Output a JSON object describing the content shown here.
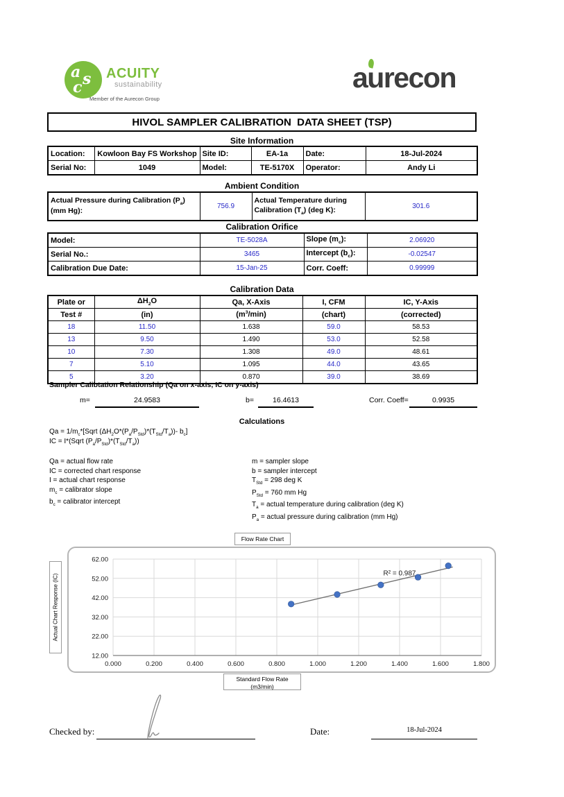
{
  "colors": {
    "input_blue": "#2728C8",
    "brand_green": "#7DBE3E",
    "point_blue": "#4472C4"
  },
  "header": {
    "acuity": {
      "monogram_a": "a",
      "monogram_s": "s",
      "monogram_c": "c",
      "name": "ACUITY",
      "tagline": "sustainability",
      "member_line": "Member of the Aurecon Group"
    },
    "aurecon_wordmark": "aurecon"
  },
  "title": "HIVOL SAMPLER CALIBRATION  DATA SHEET (TSP)",
  "site_info": {
    "heading": "Site Information",
    "location_label": "Location:",
    "location": "Kowloon Bay FS Workshop",
    "site_id_label": "Site ID:",
    "site_id": "EA-1a",
    "date_label": "Date:",
    "date": "18-Jul-2024",
    "serial_label": "Serial No:",
    "serial": "1049",
    "model_label": "Model:",
    "model": "TE-5170X",
    "operator_label": "Operator:",
    "operator": "Andy Li"
  },
  "ambient": {
    "heading": "Ambient Condition",
    "pressure_label": [
      {
        "t": "Actual Pressure during Calibration (P"
      },
      {
        "t": "a",
        "s": "sub"
      },
      {
        "t": ")"
      },
      {
        "br": true
      },
      {
        "t": "(mm Hg):"
      }
    ],
    "pressure": "756.9",
    "temp_label": [
      {
        "t": "Actual Temperature during"
      },
      {
        "br": true
      },
      {
        "t": "Calibration (T"
      },
      {
        "t": "a",
        "s": "sub"
      },
      {
        "t": ") (deg K):"
      }
    ],
    "temp": "301.6"
  },
  "orifice": {
    "heading": "Calibration Orifice",
    "left_labels": [
      "Model:",
      "Serial No.:",
      "Calibration Due Date:"
    ],
    "left_values": [
      "TE-5028A",
      "3465",
      "15-Jan-25"
    ],
    "right_labels_rich": [
      [
        {
          "t": "Slope (m"
        },
        {
          "t": "c",
          "s": "sub"
        },
        {
          "t": "):"
        }
      ],
      [
        {
          "t": "Intercept (b"
        },
        {
          "t": "c",
          "s": "sub"
        },
        {
          "t": "):"
        }
      ],
      [
        {
          "t": "Corr. Coeff:"
        }
      ]
    ],
    "right_values": [
      "2.06920",
      "-0.02547",
      "0.99999"
    ]
  },
  "calibration_data": {
    "heading": "Calibration Data",
    "headers": {
      "c1a": "Plate or",
      "c1b": "Test #",
      "c2a": [
        {
          "t": "ΔH"
        },
        {
          "t": "2",
          "s": "sub"
        },
        {
          "t": "O"
        }
      ],
      "c2b": "(in)",
      "c3a": "Qa, X-Axis",
      "c3b": [
        {
          "t": "(m"
        },
        {
          "t": "3",
          "s": "sup"
        },
        {
          "t": "/min)"
        }
      ],
      "c4a": "I, CFM",
      "c4b": "(chart)",
      "c5a": "IC, Y-Axis",
      "c5b": "(corrected)"
    },
    "rows": [
      {
        "test": "18",
        "dh2o": "11.50",
        "qa": "1.638",
        "i": "59.0",
        "ic": "58.53"
      },
      {
        "test": "13",
        "dh2o": "9.50",
        "qa": "1.490",
        "i": "53.0",
        "ic": "52.58"
      },
      {
        "test": "10",
        "dh2o": "7.30",
        "qa": "1.308",
        "i": "49.0",
        "ic": "48.61"
      },
      {
        "test": "7",
        "dh2o": "5.10",
        "qa": "1.095",
        "i": "44.0",
        "ic": "43.65"
      },
      {
        "test": "5",
        "dh2o": "3.20",
        "qa": "0.870",
        "i": "39.0",
        "ic": "38.69"
      }
    ]
  },
  "relationship": {
    "heading": "Sampler Calibtation Relationship (Qa on x-axis, IC on y-axis)",
    "m_label": "m=",
    "m": "24.9583",
    "b_label": "b=",
    "b": "16.4613",
    "corr_label": "Corr. Coeff=",
    "corr": "0.9935"
  },
  "calculations": {
    "heading": "Calculations",
    "formula_qa": [
      {
        "t": "Qa = 1/m"
      },
      {
        "t": "c",
        "s": "sub"
      },
      {
        "t": "*[Sqrt (ΔH"
      },
      {
        "t": "2",
        "s": "sub"
      },
      {
        "t": "O*(P"
      },
      {
        "t": "a",
        "s": "sub"
      },
      {
        "t": "/P"
      },
      {
        "t": "Std",
        "s": "sub"
      },
      {
        "t": ")*(T"
      },
      {
        "t": "Std",
        "s": "sub"
      },
      {
        "t": "/T"
      },
      {
        "t": "a",
        "s": "sub"
      },
      {
        "t": "))- b"
      },
      {
        "t": "c",
        "s": "sub"
      },
      {
        "t": "]"
      }
    ],
    "formula_ic": [
      {
        "t": "IC = I*(Sqrt (P"
      },
      {
        "t": "a",
        "s": "sub"
      },
      {
        "t": "/P"
      },
      {
        "t": "Std",
        "s": "sub"
      },
      {
        "t": ")*(T"
      },
      {
        "t": "Std",
        "s": "sub"
      },
      {
        "t": "/T"
      },
      {
        "t": "a",
        "s": "sub"
      },
      {
        "t": "))"
      }
    ],
    "defs_left": [
      [
        {
          "t": "Qa = actual flow rate"
        }
      ],
      [
        {
          "t": "IC = corrected chart response"
        }
      ],
      [
        {
          "t": "I = actual chart response"
        }
      ],
      [
        {
          "t": "m"
        },
        {
          "t": "c",
          "s": "sub"
        },
        {
          "t": "  = calibrator slope"
        }
      ],
      [
        {
          "t": "b"
        },
        {
          "t": "c",
          "s": "sub"
        },
        {
          "t": "  = calibrator intercept"
        }
      ]
    ],
    "defs_right": [
      [
        {
          "t": "m = sampler slope"
        }
      ],
      [
        {
          "t": "b  = sampler intercept"
        }
      ],
      [
        {
          "t": "T"
        },
        {
          "t": "Std",
          "s": "sub"
        },
        {
          "t": " = 298 deg K"
        }
      ],
      [
        {
          "t": "P"
        },
        {
          "t": "Std",
          "s": "sub"
        },
        {
          "t": " = 760 mm Hg"
        }
      ],
      [
        {
          "t": "T"
        },
        {
          "t": "a",
          "s": "sub"
        },
        {
          "t": " = actual temperature during calibration (deg K)"
        }
      ],
      [
        {
          "t": "P"
        },
        {
          "t": "a",
          "s": "sub"
        },
        {
          "t": " = actual pressure during calibration (mm Hg)"
        }
      ]
    ]
  },
  "chart_data": {
    "type": "scatter",
    "title": "Flow Rate Chart",
    "ylabel": "Actual Chart Response (IC)",
    "xlabel_line1": "Standard Flow Rate",
    "xlabel_line2": "(m3/min)",
    "x": [
      0.87,
      1.095,
      1.308,
      1.49,
      1.638
    ],
    "y": [
      38.69,
      43.65,
      48.61,
      52.58,
      58.53
    ],
    "xlim": [
      0,
      1.8
    ],
    "ylim": [
      12,
      62
    ],
    "xticks": [
      "0.000",
      "0.200",
      "0.400",
      "0.600",
      "0.800",
      "1.000",
      "1.200",
      "1.400",
      "1.600",
      "1.800"
    ],
    "yticks": [
      "12.00",
      "22.00",
      "32.00",
      "42.00",
      "52.00",
      "62.00"
    ],
    "grid": true,
    "legend": "none",
    "point_color": "#4472C4",
    "trendline": {
      "slope": 24.9583,
      "intercept": 16.4613,
      "x_start": 0.86,
      "x_end": 1.66
    },
    "r2_annotation": "R² = 0.987"
  },
  "footer": {
    "checked_by_label": "Checked by:",
    "date_label": "Date:",
    "date_value": "18-Jul-2024"
  }
}
